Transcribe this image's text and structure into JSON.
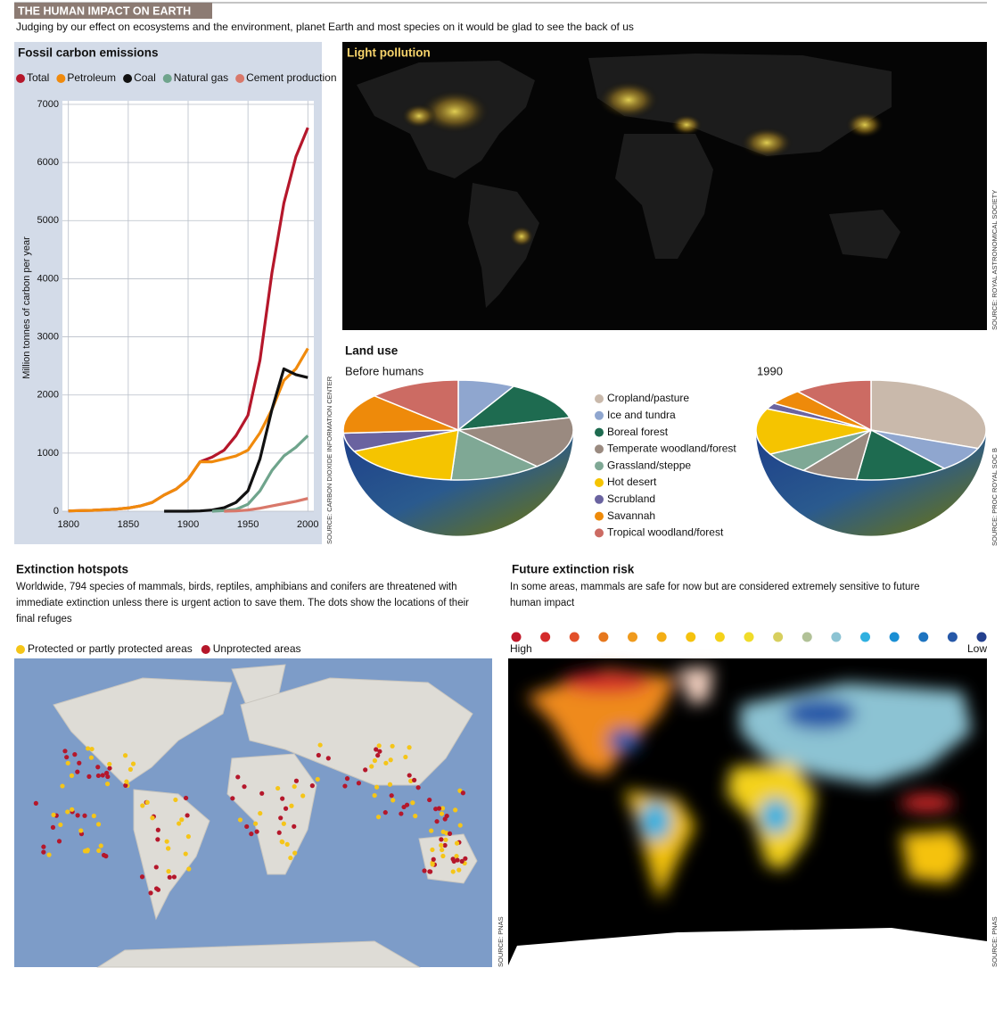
{
  "header": {
    "title": "THE HUMAN IMPACT ON EARTH",
    "subtitle": "Judging by our effect on ecosystems and the environment, planet Earth and most species on it would be glad to see the back of us"
  },
  "chart_data": [
    {
      "type": "line",
      "title": "Fossil carbon emissions",
      "y_label": "Million tonnes of carbon per year",
      "source": "SOURCE: CARBON DIOXIDE INFORMATION CENTER",
      "x": [
        1800,
        1810,
        1820,
        1830,
        1840,
        1850,
        1860,
        1870,
        1880,
        1890,
        1900,
        1910,
        1920,
        1930,
        1940,
        1950,
        1960,
        1970,
        1980,
        1990,
        2000
      ],
      "xlim": [
        1795,
        2005
      ],
      "xticks": [
        1800,
        1850,
        1900,
        1950,
        2000
      ],
      "ylim": [
        0,
        7000
      ],
      "yticks": [
        0,
        1000,
        2000,
        3000,
        4000,
        5000,
        6000,
        7000
      ],
      "grid": true,
      "series": [
        {
          "name": "Total",
          "color": "#b5172b",
          "values": [
            5,
            10,
            15,
            25,
            35,
            55,
            90,
            150,
            280,
            380,
            550,
            850,
            930,
            1050,
            1300,
            1650,
            2600,
            4100,
            5300,
            6100,
            6600
          ]
        },
        {
          "name": "Petroleum",
          "color": "#f08a0c",
          "values": [
            5,
            10,
            15,
            25,
            35,
            55,
            90,
            150,
            280,
            380,
            550,
            850,
            850,
            900,
            950,
            1050,
            1350,
            1750,
            2250,
            2450,
            2800
          ]
        },
        {
          "name": "Coal",
          "color": "#111111",
          "values": [
            null,
            null,
            null,
            null,
            null,
            null,
            null,
            null,
            0,
            0,
            0,
            5,
            20,
            60,
            150,
            350,
            900,
            1750,
            2450,
            2350,
            2300
          ]
        },
        {
          "name": "Natural gas",
          "color": "#6fa48c",
          "values": [
            null,
            null,
            null,
            null,
            null,
            null,
            null,
            null,
            null,
            null,
            null,
            null,
            0,
            10,
            30,
            120,
            350,
            700,
            950,
            1100,
            1300
          ]
        },
        {
          "name": "Cement production",
          "color": "#d9786a",
          "values": [
            null,
            null,
            null,
            null,
            null,
            null,
            null,
            null,
            null,
            null,
            null,
            null,
            null,
            0,
            5,
            20,
            50,
            90,
            130,
            170,
            220
          ]
        }
      ]
    },
    {
      "type": "pie",
      "section_title": "Land use",
      "title": "Before humans",
      "source": "SOURCE: PROC ROYAL SOC B",
      "categories": [
        "Cropland/pasture",
        "Ice and tundra",
        "Boreal forest",
        "Temperate woodland/forest",
        "Grassland/steppe",
        "Hot desert",
        "Scrubland",
        "Savannah",
        "Tropical woodland/forest"
      ],
      "colors": [
        "#c9b9ab",
        "#8fa6cf",
        "#1e6b50",
        "#9a8a80",
        "#7fa895",
        "#f5c400",
        "#6a63a0",
        "#ee8a0a",
        "#cc6b63"
      ],
      "values": [
        0,
        8,
        13,
        17,
        13,
        17,
        6,
        13,
        13
      ]
    },
    {
      "type": "pie",
      "title": "1990",
      "categories": [
        "Cropland/pasture",
        "Ice and tundra",
        "Boreal forest",
        "Temperate woodland/forest",
        "Grassland/steppe",
        "Hot desert",
        "Scrubland",
        "Savannah",
        "Tropical woodland/forest"
      ],
      "colors": [
        "#c9b9ab",
        "#8fa6cf",
        "#1e6b50",
        "#9a8a80",
        "#7fa895",
        "#f5c400",
        "#6a63a0",
        "#ee8a0a",
        "#cc6b63"
      ],
      "values": [
        31,
        8,
        13,
        8,
        7,
        15,
        2,
        5,
        11
      ]
    }
  ],
  "maps": [
    {
      "title": "Light pollution",
      "source": "SOURCE: ROYAL ASTRONOMICAL SOCIETY"
    },
    {
      "title": "Extinction hotspots",
      "description": "Worldwide, 794 species of mammals, birds, reptiles, amphibians and conifers are threatened with immediate extinction unless there is urgent action to save them. The dots show the locations of their final refuges",
      "legend": [
        {
          "label": "Protected or partly protected areas",
          "color": "#f5c518"
        },
        {
          "label": "Unprotected areas",
          "color": "#b5172b"
        }
      ],
      "source": "SOURCE: PNAS"
    },
    {
      "title": "Future extinction risk",
      "description": "In some areas, mammals are safe for now but are considered extremely sensitive to future human impact",
      "scale_colors": [
        "#c0182a",
        "#d42b2b",
        "#e2502a",
        "#e6781e",
        "#ef9a1d",
        "#f3ae15",
        "#f5c20e",
        "#f4d21a",
        "#f0dc2a",
        "#d7cf5e",
        "#b1c197",
        "#8cc3d3",
        "#2fb0e0",
        "#1a8fd4",
        "#1e74c0",
        "#2658a8",
        "#24408e"
      ],
      "scale_high": "High",
      "scale_low": "Low",
      "source": "SOURCE: PNAS"
    }
  ]
}
